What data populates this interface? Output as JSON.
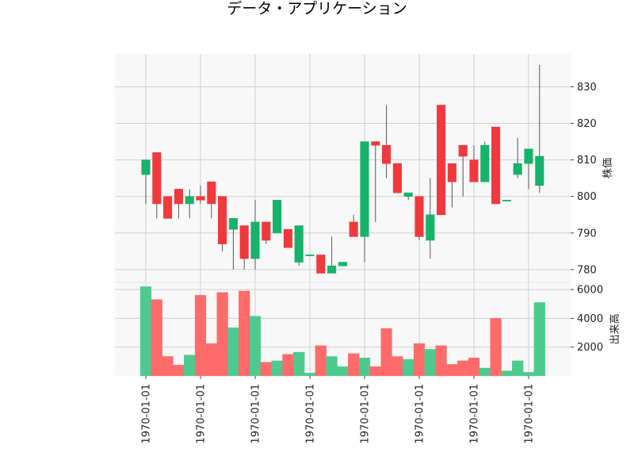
{
  "chart_data": {
    "type": "candlestick",
    "title": "データ・アプリケーション",
    "x_tick_labels": [
      "1970-01-01",
      "1970-01-01",
      "1970-01-01",
      "1970-01-01",
      "1970-01-01",
      "1970-01-01",
      "1970-01-01",
      "1970-01-01"
    ],
    "price_panel": {
      "ylabel": "株価",
      "ylim": [
        776.5,
        839
      ],
      "yticks": [
        780,
        790,
        800,
        810,
        820,
        830
      ],
      "grid": true
    },
    "volume_panel": {
      "ylabel": "出来高",
      "ylim": [
        0,
        6500
      ],
      "yticks": [
        2000,
        4000,
        6000
      ],
      "grid": true
    },
    "colors": {
      "up": "#16b36b",
      "down": "#f0393d",
      "up_volume": "#4fca8f",
      "down_volume": "#ff6b6b",
      "wick": "#555555"
    },
    "candles": [
      {
        "open": 806,
        "high": 810,
        "low": 798,
        "close": 810,
        "volume": 6200
      },
      {
        "open": 812,
        "high": 812,
        "low": 794,
        "close": 798,
        "volume": 5300
      },
      {
        "open": 800,
        "high": 800,
        "low": 794,
        "close": 794,
        "volume": 1350
      },
      {
        "open": 802,
        "high": 802,
        "low": 794,
        "close": 798,
        "volume": 750
      },
      {
        "open": 798,
        "high": 802,
        "low": 794,
        "close": 800,
        "volume": 1450
      },
      {
        "open": 800,
        "high": 803,
        "low": 798,
        "close": 799,
        "volume": 5600
      },
      {
        "open": 804,
        "high": 804,
        "low": 794,
        "close": 798,
        "volume": 2250
      },
      {
        "open": 800,
        "high": 800,
        "low": 785,
        "close": 787,
        "volume": 5800
      },
      {
        "open": 791,
        "high": 794,
        "low": 780,
        "close": 794,
        "volume": 3350
      },
      {
        "open": 792,
        "high": 792,
        "low": 780,
        "close": 783,
        "volume": 5900
      },
      {
        "open": 783,
        "high": 799,
        "low": 780,
        "close": 793,
        "volume": 4150
      },
      {
        "open": 793,
        "high": 793,
        "low": 787,
        "close": 788,
        "volume": 950
      },
      {
        "open": 790,
        "high": 799,
        "low": 790,
        "close": 799,
        "volume": 1050
      },
      {
        "open": 791,
        "high": 791,
        "low": 786,
        "close": 786,
        "volume": 1500
      },
      {
        "open": 782,
        "high": 792,
        "low": 781,
        "close": 792,
        "volume": 1650
      },
      {
        "open": 784,
        "high": 784,
        "low": 784,
        "close": 784,
        "volume": 200
      },
      {
        "open": 784,
        "high": 784,
        "low": 779,
        "close": 779,
        "volume": 2100
      },
      {
        "open": 779,
        "high": 789,
        "low": 779,
        "close": 781,
        "volume": 1350
      },
      {
        "open": 781,
        "high": 782,
        "low": 781,
        "close": 782,
        "volume": 650
      },
      {
        "open": 793,
        "high": 795,
        "low": 789,
        "close": 789,
        "volume": 1550
      },
      {
        "open": 789,
        "high": 815,
        "low": 782,
        "close": 815,
        "volume": 1250
      },
      {
        "open": 815,
        "high": 815,
        "low": 793,
        "close": 814,
        "volume": 650
      },
      {
        "open": 814,
        "high": 825,
        "low": 805,
        "close": 809,
        "volume": 3300
      },
      {
        "open": 809,
        "high": 809,
        "low": 801,
        "close": 801,
        "volume": 1350
      },
      {
        "open": 800,
        "high": 801,
        "low": 799,
        "close": 801,
        "volume": 1150
      },
      {
        "open": 800,
        "high": 800,
        "low": 788,
        "close": 789,
        "volume": 2250
      },
      {
        "open": 788,
        "high": 805,
        "low": 783,
        "close": 795,
        "volume": 1850
      },
      {
        "open": 825,
        "high": 825,
        "low": 795,
        "close": 795,
        "volume": 2100
      },
      {
        "open": 809,
        "high": 809,
        "low": 797,
        "close": 804,
        "volume": 800
      },
      {
        "open": 814,
        "high": 814,
        "low": 800,
        "close": 811,
        "volume": 1050
      },
      {
        "open": 810,
        "high": 814,
        "low": 804,
        "close": 804,
        "volume": 1250
      },
      {
        "open": 804,
        "high": 815,
        "low": 804,
        "close": 814,
        "volume": 550
      },
      {
        "open": 819,
        "high": 819,
        "low": 798,
        "close": 798,
        "volume": 4000
      },
      {
        "open": 799,
        "high": 799,
        "low": 799,
        "close": 799,
        "volume": 350
      },
      {
        "open": 806,
        "high": 816,
        "low": 805,
        "close": 809,
        "volume": 1050
      },
      {
        "open": 809,
        "high": 813,
        "low": 802,
        "close": 813,
        "volume": 250
      },
      {
        "open": 803,
        "high": 836,
        "low": 801,
        "close": 811,
        "volume": 5100
      }
    ]
  }
}
